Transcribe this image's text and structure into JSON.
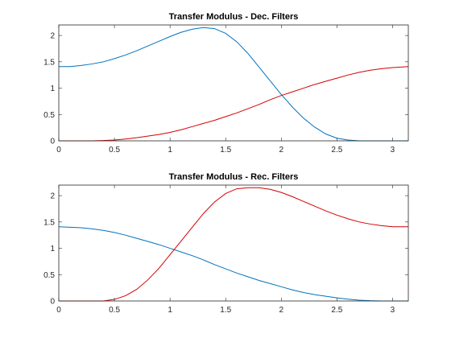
{
  "chart_data": [
    {
      "type": "line",
      "title": "Transfer Modulus - Dec. Filters",
      "xlabel": "",
      "ylabel": "",
      "xlim": [
        0,
        3.1416
      ],
      "ylim": [
        0,
        2.2
      ],
      "xticks": [
        0,
        0.5,
        1,
        1.5,
        2,
        2.5,
        3
      ],
      "xtick_labels": [
        "0",
        "0.5",
        "1",
        "1.5",
        "2",
        "2.5",
        "3"
      ],
      "yticks": [
        0,
        0.5,
        1,
        1.5,
        2
      ],
      "ytick_labels": [
        "0",
        "0.5",
        "1",
        "1.5",
        "2"
      ],
      "grid": false,
      "series": [
        {
          "color": "#0072bd",
          "x": [
            0,
            0.1,
            0.2,
            0.3,
            0.4,
            0.5,
            0.6,
            0.7,
            0.8,
            0.9,
            1.0,
            1.1,
            1.2,
            1.3,
            1.4,
            1.5,
            1.6,
            1.7,
            1.8,
            1.9,
            2.0,
            2.1,
            2.2,
            2.3,
            2.4,
            2.5,
            2.6,
            2.7,
            2.8,
            2.9,
            3.0,
            3.1416
          ],
          "y": [
            1.41,
            1.41,
            1.43,
            1.46,
            1.5,
            1.56,
            1.63,
            1.71,
            1.8,
            1.89,
            1.98,
            2.06,
            2.12,
            2.15,
            2.13,
            2.04,
            1.88,
            1.66,
            1.4,
            1.14,
            0.88,
            0.64,
            0.43,
            0.26,
            0.13,
            0.05,
            0.015,
            0.0,
            0.0,
            0.0,
            0.0,
            0.0
          ]
        },
        {
          "color": "#d40000",
          "x": [
            0,
            0.1,
            0.2,
            0.3,
            0.4,
            0.5,
            0.6,
            0.7,
            0.8,
            0.9,
            1.0,
            1.1,
            1.2,
            1.3,
            1.4,
            1.5,
            1.6,
            1.7,
            1.8,
            1.9,
            2.0,
            2.1,
            2.2,
            2.3,
            2.4,
            2.5,
            2.6,
            2.7,
            2.8,
            2.9,
            3.0,
            3.1416
          ],
          "y": [
            0.0,
            0.0,
            0.0,
            0.0,
            0.005,
            0.015,
            0.035,
            0.06,
            0.09,
            0.12,
            0.16,
            0.21,
            0.27,
            0.33,
            0.39,
            0.46,
            0.53,
            0.61,
            0.69,
            0.78,
            0.86,
            0.93,
            1.0,
            1.07,
            1.13,
            1.19,
            1.25,
            1.3,
            1.34,
            1.37,
            1.39,
            1.41
          ]
        }
      ]
    },
    {
      "type": "line",
      "title": "Transfer Modulus - Rec. Filters",
      "xlabel": "",
      "ylabel": "",
      "xlim": [
        0,
        3.1416
      ],
      "ylim": [
        0,
        2.2
      ],
      "xticks": [
        0,
        0.5,
        1,
        1.5,
        2,
        2.5,
        3
      ],
      "xtick_labels": [
        "0",
        "0.5",
        "1",
        "1.5",
        "2",
        "2.5",
        "3"
      ],
      "yticks": [
        0,
        0.5,
        1,
        1.5,
        2
      ],
      "ytick_labels": [
        "0",
        "0.5",
        "1",
        "1.5",
        "2"
      ],
      "grid": false,
      "series": [
        {
          "color": "#0072bd",
          "x": [
            0,
            0.1,
            0.2,
            0.3,
            0.4,
            0.5,
            0.6,
            0.7,
            0.8,
            0.9,
            1.0,
            1.1,
            1.2,
            1.3,
            1.4,
            1.5,
            1.6,
            1.7,
            1.8,
            1.9,
            2.0,
            2.1,
            2.2,
            2.3,
            2.4,
            2.5,
            2.6,
            2.7,
            2.8,
            2.9,
            3.0,
            3.1416
          ],
          "y": [
            1.41,
            1.4,
            1.39,
            1.37,
            1.34,
            1.3,
            1.25,
            1.19,
            1.13,
            1.07,
            1.0,
            0.93,
            0.86,
            0.78,
            0.69,
            0.61,
            0.53,
            0.46,
            0.39,
            0.33,
            0.27,
            0.21,
            0.16,
            0.12,
            0.09,
            0.06,
            0.035,
            0.015,
            0.005,
            0.0,
            0.0,
            0.0
          ]
        },
        {
          "color": "#d40000",
          "x": [
            0,
            0.1,
            0.2,
            0.3,
            0.4,
            0.5,
            0.6,
            0.7,
            0.8,
            0.9,
            1.0,
            1.1,
            1.2,
            1.3,
            1.4,
            1.5,
            1.6,
            1.7,
            1.8,
            1.9,
            2.0,
            2.1,
            2.2,
            2.3,
            2.4,
            2.5,
            2.6,
            2.7,
            2.8,
            2.9,
            3.0,
            3.1416
          ],
          "y": [
            0.0,
            0.0,
            0.0,
            0.0,
            0.0,
            0.03,
            0.1,
            0.22,
            0.4,
            0.62,
            0.88,
            1.14,
            1.4,
            1.66,
            1.88,
            2.04,
            2.13,
            2.15,
            2.15,
            2.12,
            2.06,
            1.98,
            1.89,
            1.8,
            1.71,
            1.63,
            1.56,
            1.5,
            1.46,
            1.43,
            1.41,
            1.41
          ]
        }
      ]
    }
  ]
}
